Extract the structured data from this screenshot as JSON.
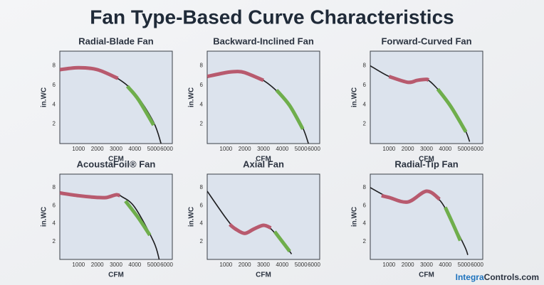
{
  "title": "Fan Type-Based Curve Characteristics",
  "brand": {
    "name": "Integra",
    "suffix": "Controls.com"
  },
  "chart_data": [
    {
      "type": "line",
      "title": "Radial-Blade Fan",
      "x_label": "CFM",
      "y_label": "in.WC",
      "xlim": [
        0,
        6000
      ],
      "ylim": [
        0,
        9.5
      ],
      "xticks": [
        1000,
        2000,
        3000,
        4000,
        5000,
        6000
      ],
      "yticks": [
        2,
        4,
        6,
        8
      ],
      "series": [
        {
          "color": "#1d1d1f",
          "x": [
            0,
            1000,
            2000,
            3000,
            4000,
            5000,
            5400
          ],
          "values": [
            7.6,
            7.8,
            7.6,
            6.8,
            5.2,
            2.2,
            0
          ]
        },
        {
          "color": "#b85a6e",
          "x": [
            0,
            1000,
            2000,
            3100
          ],
          "values": [
            7.6,
            7.8,
            7.6,
            6.7
          ]
        },
        {
          "color": "#6fae4c",
          "x": [
            3600,
            4200,
            5000
          ],
          "values": [
            5.9,
            4.5,
            1.9
          ]
        }
      ]
    },
    {
      "type": "line",
      "title": "Backward-Inclined Fan",
      "x_label": "CFM",
      "y_label": "in.WC",
      "xlim": [
        0,
        6000
      ],
      "ylim": [
        0,
        9.5
      ],
      "xticks": [
        1000,
        2000,
        3000,
        4000,
        5000,
        6000
      ],
      "yticks": [
        2,
        4,
        6,
        8
      ],
      "series": [
        {
          "color": "#1d1d1f",
          "x": [
            0,
            1000,
            1500,
            2000,
            3000,
            4000,
            5000,
            5400
          ],
          "values": [
            6.9,
            7.3,
            7.4,
            7.3,
            6.5,
            4.8,
            2.0,
            0
          ]
        },
        {
          "color": "#b85a6e",
          "x": [
            0,
            1000,
            1500,
            2000,
            3000
          ],
          "values": [
            6.9,
            7.3,
            7.4,
            7.3,
            6.5
          ]
        },
        {
          "color": "#6fae4c",
          "x": [
            3700,
            4400,
            5100
          ],
          "values": [
            5.5,
            3.9,
            1.5
          ]
        }
      ]
    },
    {
      "type": "line",
      "title": "Forward-Curved Fan",
      "x_label": "CFM",
      "y_label": "in.WC",
      "xlim": [
        0,
        6000
      ],
      "ylim": [
        0,
        9.5
      ],
      "xticks": [
        1000,
        2000,
        3000,
        4000,
        5000,
        6000
      ],
      "yticks": [
        2,
        4,
        6,
        8
      ],
      "series": [
        {
          "color": "#1d1d1f",
          "x": [
            0,
            1000,
            2000,
            2500,
            3000,
            3500,
            4000,
            5000,
            5300
          ],
          "values": [
            8.0,
            6.9,
            6.3,
            6.5,
            6.6,
            5.8,
            4.6,
            1.6,
            0.2
          ]
        },
        {
          "color": "#b85a6e",
          "x": [
            1000,
            2000,
            2500,
            3000,
            3100
          ],
          "values": [
            6.9,
            6.3,
            6.5,
            6.6,
            6.5
          ]
        },
        {
          "color": "#6fae4c",
          "x": [
            3600,
            4300,
            5100
          ],
          "values": [
            5.6,
            3.8,
            1.2
          ]
        }
      ]
    },
    {
      "type": "line",
      "title": "AcoustaFoil® Fan",
      "x_label": "CFM",
      "y_label": "in.WC",
      "xlim": [
        0,
        6000
      ],
      "ylim": [
        0,
        9.5
      ],
      "xticks": [
        1000,
        2000,
        3000,
        4000,
        5000,
        6000
      ],
      "yticks": [
        2,
        4,
        6,
        8
      ],
      "series": [
        {
          "color": "#1d1d1f",
          "x": [
            0,
            1000,
            2000,
            2500,
            3000,
            3300,
            4000,
            5000,
            5300
          ],
          "values": [
            7.4,
            7.1,
            6.9,
            6.9,
            7.2,
            7.0,
            5.8,
            2.0,
            0
          ]
        },
        {
          "color": "#b85a6e",
          "x": [
            0,
            1000,
            2000,
            2500,
            3000,
            3200
          ],
          "values": [
            7.4,
            7.1,
            6.9,
            6.9,
            7.2,
            7.1
          ]
        },
        {
          "color": "#6fae4c",
          "x": [
            3500,
            4200,
            4800
          ],
          "values": [
            6.5,
            4.6,
            2.7
          ]
        }
      ]
    },
    {
      "type": "line",
      "title": "Axial Fan",
      "x_label": "CFM",
      "y_label": "in.WC",
      "xlim": [
        0,
        6000
      ],
      "ylim": [
        0,
        9.5
      ],
      "xticks": [
        1000,
        2000,
        3000,
        4000,
        5000,
        6000
      ],
      "yticks": [
        2,
        4,
        6,
        8
      ],
      "series": [
        {
          "color": "#1d1d1f",
          "x": [
            0,
            1000,
            1500,
            2000,
            2500,
            3000,
            3300,
            4000,
            4500
          ],
          "values": [
            7.6,
            4.6,
            3.4,
            2.9,
            3.4,
            3.8,
            3.6,
            2.0,
            0.6
          ]
        },
        {
          "color": "#b85a6e",
          "x": [
            1200,
            1500,
            2000,
            2500,
            3000,
            3400
          ],
          "values": [
            3.9,
            3.4,
            2.9,
            3.4,
            3.8,
            3.5
          ]
        },
        {
          "color": "#6fae4c",
          "x": [
            3600,
            4000,
            4400
          ],
          "values": [
            3.1,
            2.0,
            0.9
          ]
        }
      ]
    },
    {
      "type": "line",
      "title": "Radial-Tip Fan",
      "x_label": "CFM",
      "y_label": "in.WC",
      "xlim": [
        0,
        6000
      ],
      "ylim": [
        0,
        9.5
      ],
      "xticks": [
        1000,
        2000,
        3000,
        4000,
        5000,
        6000
      ],
      "yticks": [
        2,
        4,
        6,
        8
      ],
      "series": [
        {
          "color": "#1d1d1f",
          "x": [
            0,
            1000,
            2000,
            3000,
            3500,
            4000,
            5000,
            5200
          ],
          "values": [
            8.0,
            6.9,
            6.4,
            7.6,
            7.0,
            5.7,
            1.6,
            0.5
          ]
        },
        {
          "color": "#b85a6e",
          "x": [
            600,
            1000,
            2000,
            3000,
            3700
          ],
          "values": [
            7.1,
            6.9,
            6.4,
            7.6,
            6.7
          ]
        },
        {
          "color": "#6fae4c",
          "x": [
            4000,
            4400,
            4800
          ],
          "values": [
            5.8,
            4.0,
            2.1
          ]
        }
      ]
    }
  ]
}
